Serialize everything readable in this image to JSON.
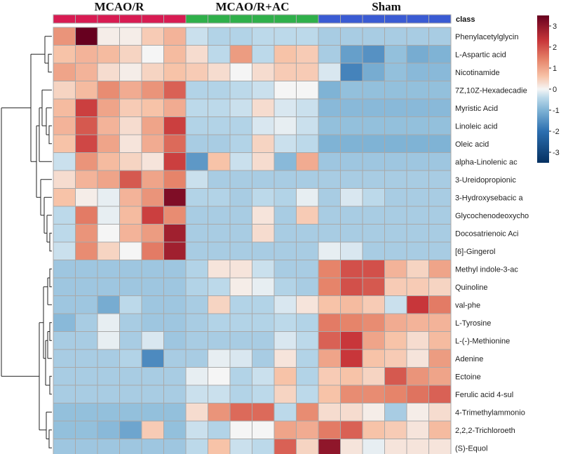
{
  "chart_data": {
    "type": "heatmap",
    "class_label": "class",
    "groups": [
      {
        "name": "MCAO/R",
        "color": "#d81b52",
        "n": 6
      },
      {
        "name": "MCAO/R+AC",
        "color": "#2fb04a",
        "n": 6
      },
      {
        "name": "Sham",
        "color": "#3a5bd3",
        "n": 6
      }
    ],
    "rows": [
      "Phenylacetylglycin",
      "L-Aspartic acid",
      "Nicotinamide",
      "7Z,10Z-Hexadecadie",
      "Myristic Acid",
      "Linoleic acid",
      "Oleic acid",
      "alpha-Linolenic ac",
      "3-Ureidopropionic",
      "3-Hydroxysebacic a",
      "Glycochenodeoxycho",
      "Docosatrienoic Aci",
      "[6]-Gingerol",
      "Methyl indole-3-ac",
      "Quinoline",
      "val-phe",
      "L-Tyrosine",
      "L-(-)-Methionine",
      "Adenine",
      "Ectoine",
      "Ferulic acid 4-sul",
      "4-Trimethylammonio",
      "2,2,2-Trichloroeth",
      "(S)-Equol"
    ],
    "values": [
      [
        1.2,
        3.6,
        0.1,
        0.1,
        0.5,
        0.8,
        -0.3,
        -0.5,
        -0.5,
        -0.4,
        -0.4,
        -0.4,
        -0.6,
        -0.6,
        -0.6,
        -0.6,
        -0.6,
        -0.6
      ],
      [
        0.6,
        0.8,
        0.7,
        0.4,
        0.0,
        0.7,
        0.3,
        -0.4,
        1.1,
        -0.4,
        0.6,
        0.5,
        -0.6,
        -1.3,
        -1.5,
        -0.8,
        -1.1,
        -1.0
      ],
      [
        1.0,
        0.8,
        0.3,
        0.1,
        0.4,
        0.6,
        0.5,
        0.3,
        0.0,
        0.3,
        0.5,
        0.5,
        -0.2,
        -1.7,
        -1.1,
        -0.8,
        -0.9,
        -0.9
      ],
      [
        0.4,
        0.7,
        1.3,
        0.9,
        1.2,
        1.8,
        -0.5,
        -0.5,
        -0.4,
        -0.3,
        0.0,
        0.0,
        -1.0,
        -0.8,
        -0.8,
        -0.8,
        -0.8,
        -0.8
      ],
      [
        0.7,
        2.2,
        1.0,
        0.5,
        0.6,
        0.9,
        -0.4,
        -0.4,
        -0.3,
        0.3,
        -0.2,
        -0.3,
        -0.9,
        -0.9,
        -0.9,
        -0.9,
        -0.9,
        -0.9
      ],
      [
        0.8,
        1.9,
        0.8,
        0.3,
        1.0,
        2.2,
        -0.5,
        -0.5,
        -0.5,
        -0.2,
        -0.1,
        -0.3,
        -0.8,
        -0.8,
        -0.8,
        -0.8,
        -0.8,
        -0.8
      ],
      [
        0.6,
        2.1,
        1.0,
        0.2,
        0.9,
        1.7,
        -0.6,
        -0.6,
        -0.5,
        0.4,
        -0.3,
        -0.4,
        -1.0,
        -1.0,
        -1.0,
        -1.0,
        -1.0,
        -1.0
      ],
      [
        -0.3,
        1.2,
        0.7,
        0.4,
        0.2,
        2.2,
        -1.4,
        0.6,
        -0.3,
        0.3,
        -0.9,
        0.9,
        -0.7,
        -0.7,
        -0.7,
        -0.7,
        -0.7,
        -0.7
      ],
      [
        0.3,
        0.8,
        1.0,
        1.9,
        1.0,
        1.4,
        -0.3,
        -0.6,
        -0.6,
        -0.6,
        -0.6,
        -0.6,
        -0.6,
        -0.6,
        -0.6,
        -0.6,
        -0.6,
        -0.6
      ],
      [
        0.6,
        0.1,
        -0.1,
        0.8,
        1.2,
        3.2,
        -0.5,
        -0.5,
        -0.6,
        -0.4,
        -0.5,
        -0.1,
        -0.6,
        -0.2,
        -0.4,
        -0.6,
        -0.6,
        -0.6
      ],
      [
        -0.4,
        1.5,
        -0.1,
        0.7,
        2.2,
        1.3,
        -0.6,
        -0.6,
        -0.6,
        0.2,
        -0.6,
        0.5,
        -0.6,
        -0.6,
        -0.6,
        -0.6,
        -0.6,
        -0.6
      ],
      [
        -0.4,
        1.2,
        0.0,
        0.8,
        1.1,
        2.8,
        -0.6,
        -0.6,
        -0.6,
        0.3,
        -0.6,
        -0.6,
        -0.6,
        -0.6,
        -0.6,
        -0.6,
        -0.6,
        -0.6
      ],
      [
        -0.3,
        1.3,
        0.4,
        0.0,
        1.5,
        2.8,
        -0.6,
        -0.6,
        -0.6,
        -0.6,
        -0.6,
        -0.6,
        -0.1,
        -0.2,
        -0.6,
        -0.6,
        -0.6,
        -0.6
      ],
      [
        -0.7,
        -0.7,
        -0.7,
        -0.7,
        -0.7,
        -0.7,
        -0.5,
        0.2,
        0.2,
        -0.3,
        -0.6,
        -0.6,
        1.4,
        2.0,
        2.0,
        0.8,
        0.4,
        1.0
      ],
      [
        -0.7,
        -0.7,
        -0.7,
        -0.7,
        -0.7,
        -0.7,
        -0.5,
        -0.4,
        0.1,
        -0.1,
        -0.5,
        -0.6,
        1.4,
        2.0,
        1.9,
        0.5,
        0.5,
        0.4
      ],
      [
        -0.7,
        -0.7,
        -1.1,
        -0.4,
        -0.7,
        -0.7,
        -0.6,
        0.4,
        -0.5,
        -0.5,
        -0.2,
        0.2,
        0.6,
        0.7,
        0.5,
        -0.3,
        2.3,
        1.5
      ],
      [
        -0.9,
        -0.6,
        -0.1,
        -0.6,
        -0.7,
        -0.7,
        -0.6,
        -0.5,
        -0.5,
        -0.5,
        -0.4,
        -0.5,
        1.5,
        1.4,
        1.3,
        0.9,
        0.8,
        0.8
      ],
      [
        -0.6,
        -0.6,
        -0.1,
        -0.6,
        -0.2,
        -0.7,
        -0.6,
        -0.6,
        -0.6,
        -0.6,
        -0.2,
        -0.4,
        1.8,
        2.3,
        1.0,
        0.6,
        0.3,
        0.7
      ],
      [
        -0.6,
        -0.6,
        -0.6,
        -0.5,
        -1.6,
        -0.6,
        -0.6,
        -0.1,
        -0.2,
        -0.6,
        0.2,
        -0.5,
        1.0,
        2.3,
        0.6,
        0.5,
        0.2,
        1.1
      ],
      [
        -0.6,
        -0.6,
        -0.6,
        -0.6,
        -0.6,
        -0.6,
        -0.1,
        0.0,
        -0.5,
        -0.3,
        0.6,
        -0.5,
        0.5,
        0.6,
        0.4,
        1.9,
        1.2,
        1.0
      ],
      [
        -0.6,
        -0.6,
        -0.6,
        -0.6,
        -0.6,
        -0.6,
        -0.3,
        -0.3,
        -0.5,
        -0.4,
        0.4,
        -0.4,
        0.6,
        1.3,
        1.3,
        1.4,
        1.6,
        1.8
      ],
      [
        -0.8,
        -0.8,
        -0.8,
        -0.8,
        -0.8,
        -0.8,
        0.3,
        1.2,
        1.7,
        1.7,
        -0.4,
        1.3,
        0.3,
        0.3,
        0.1,
        -0.6,
        0.1,
        0.3
      ],
      [
        -0.8,
        -0.8,
        -0.9,
        -1.2,
        0.5,
        -0.8,
        -0.3,
        -0.5,
        0.0,
        0.0,
        1.0,
        0.9,
        1.5,
        1.8,
        0.6,
        0.5,
        0.2,
        0.7
      ],
      [
        -0.7,
        -0.7,
        -0.7,
        -0.7,
        -0.7,
        -0.7,
        -0.4,
        0.6,
        -0.3,
        -0.4,
        1.8,
        0.4,
        3.0,
        0.2,
        -0.1,
        0.2,
        0.2,
        0.2
      ]
    ],
    "color_scale": {
      "min": -3.5,
      "max": 3.5,
      "ticks": [
        3,
        2,
        1,
        0,
        -1,
        -2,
        -3
      ],
      "stops": [
        {
          "v": -3.5,
          "color": "#053061"
        },
        {
          "v": -2.0,
          "color": "#2c6fb0"
        },
        {
          "v": -1.0,
          "color": "#7fb3d5"
        },
        {
          "v": -0.4,
          "color": "#bcd9ea"
        },
        {
          "v": 0.0,
          "color": "#f5f5f5"
        },
        {
          "v": 0.6,
          "color": "#f7c3a8"
        },
        {
          "v": 1.4,
          "color": "#e6846a"
        },
        {
          "v": 2.3,
          "color": "#c8363a"
        },
        {
          "v": 3.5,
          "color": "#67001f"
        }
      ]
    }
  }
}
